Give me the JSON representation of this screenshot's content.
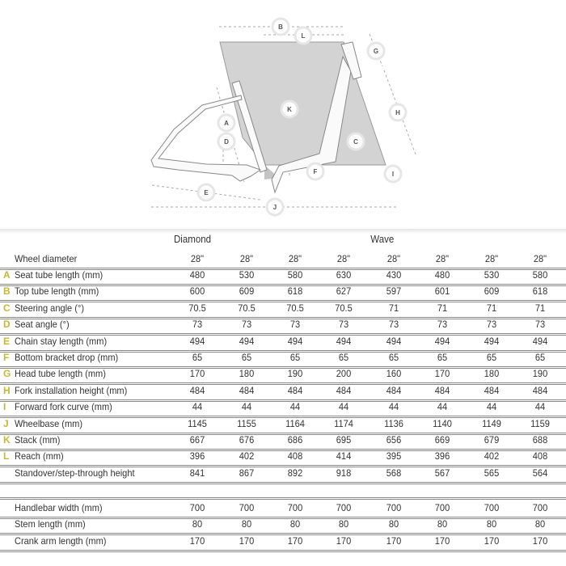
{
  "diagram": {
    "labels": [
      "A",
      "B",
      "C",
      "D",
      "E",
      "F",
      "G",
      "H",
      "I",
      "J",
      "K",
      "L"
    ]
  },
  "table": {
    "groups": [
      {
        "label": "Diamond"
      },
      {
        "label": "Wave"
      }
    ],
    "header_row": {
      "label": "Wheel diameter",
      "values": [
        "28\"",
        "28\"",
        "28\"",
        "28\"",
        "28\"",
        "28\"",
        "28\"",
        "28\""
      ]
    },
    "rows": [
      {
        "letter": "A",
        "label": "Seat tube length (mm)",
        "values": [
          "480",
          "530",
          "580",
          "630",
          "430",
          "480",
          "530",
          "580"
        ]
      },
      {
        "letter": "B",
        "label": "Top tube length (mm)",
        "values": [
          "600",
          "609",
          "618",
          "627",
          "597",
          "601",
          "609",
          "618"
        ]
      },
      {
        "letter": "C",
        "label": "Steering angle (°)",
        "values": [
          "70.5",
          "70.5",
          "70.5",
          "70.5",
          "71",
          "71",
          "71",
          "71"
        ]
      },
      {
        "letter": "D",
        "label": "Seat angle (°)",
        "values": [
          "73",
          "73",
          "73",
          "73",
          "73",
          "73",
          "73",
          "73"
        ]
      },
      {
        "letter": "E",
        "label": "Chain stay length (mm)",
        "values": [
          "494",
          "494",
          "494",
          "494",
          "494",
          "494",
          "494",
          "494"
        ]
      },
      {
        "letter": "F",
        "label": "Bottom bracket drop (mm)",
        "values": [
          "65",
          "65",
          "65",
          "65",
          "65",
          "65",
          "65",
          "65"
        ]
      },
      {
        "letter": "G",
        "label": "Head tube length (mm)",
        "values": [
          "170",
          "180",
          "190",
          "200",
          "160",
          "170",
          "180",
          "190"
        ]
      },
      {
        "letter": "H",
        "label": "Fork installation height (mm)",
        "values": [
          "484",
          "484",
          "484",
          "484",
          "484",
          "484",
          "484",
          "484"
        ]
      },
      {
        "letter": "I",
        "label": "Forward fork curve (mm)",
        "values": [
          "44",
          "44",
          "44",
          "44",
          "44",
          "44",
          "44",
          "44"
        ]
      },
      {
        "letter": "J",
        "label": "Wheelbase (mm)",
        "values": [
          "1145",
          "1155",
          "1164",
          "1174",
          "1136",
          "1140",
          "1149",
          "1159"
        ]
      },
      {
        "letter": "K",
        "label": "Stack (mm)",
        "values": [
          "667",
          "676",
          "686",
          "695",
          "656",
          "669",
          "679",
          "688"
        ]
      },
      {
        "letter": "L",
        "label": "Reach (mm)",
        "values": [
          "396",
          "402",
          "408",
          "414",
          "395",
          "396",
          "402",
          "408"
        ]
      },
      {
        "letter": "",
        "label": "Standover/step-through height",
        "values": [
          "841",
          "867",
          "892",
          "918",
          "568",
          "567",
          "565",
          "564"
        ]
      }
    ],
    "extra_rows": [
      {
        "label": "Handlebar width (mm)",
        "values": [
          "700",
          "700",
          "700",
          "700",
          "700",
          "700",
          "700",
          "700"
        ]
      },
      {
        "label": "Stem length (mm)",
        "values": [
          "80",
          "80",
          "80",
          "80",
          "80",
          "80",
          "80",
          "80"
        ]
      },
      {
        "label": "Crank arm length (mm)",
        "values": [
          "170",
          "170",
          "170",
          "170",
          "170",
          "170",
          "170",
          "170"
        ]
      }
    ],
    "letter_color": "#c9b92a"
  }
}
